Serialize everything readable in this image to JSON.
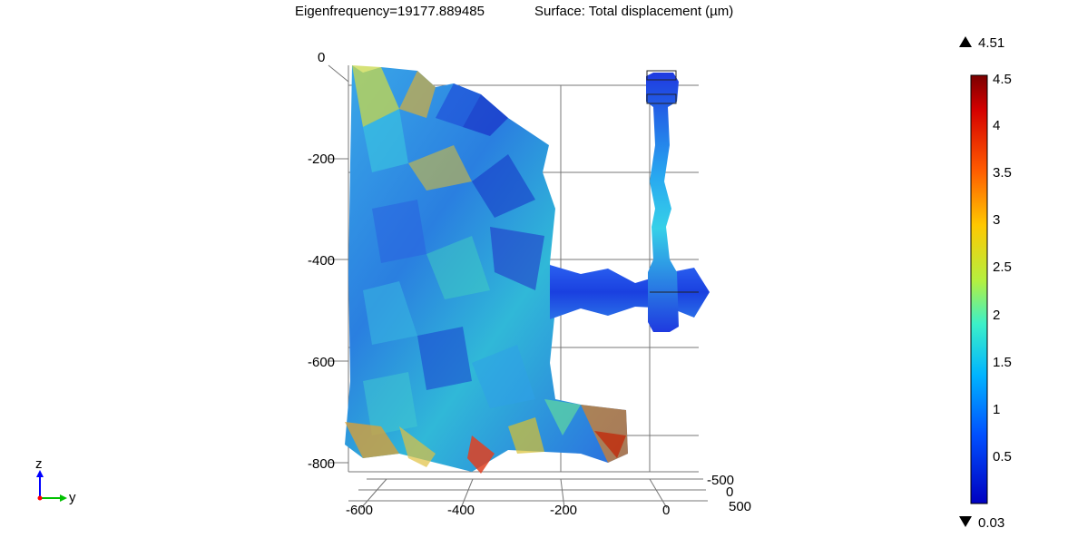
{
  "title": {
    "eigenfrequency": "Eigenfrequency=19177.889485",
    "surface": "Surface: Total displacement (µm)"
  },
  "axes": {
    "z_ticks": [
      "0",
      "-200",
      "-400",
      "-600",
      "-800"
    ],
    "y_ticks": [
      "-600",
      "-400",
      "-200",
      "0"
    ],
    "x_ticks": [
      "-500",
      "0",
      "500"
    ]
  },
  "triad": {
    "z": "z",
    "y": "y"
  },
  "colorbar": {
    "max_marker": "4.51",
    "min_marker": "0.03",
    "ticks": [
      "4.5",
      "4",
      "3.5",
      "3",
      "2.5",
      "2",
      "1.5",
      "1",
      "0.5"
    ],
    "colors": [
      "#7a0000",
      "#d40000",
      "#ff5a00",
      "#ffc800",
      "#b4f040",
      "#3cf0c8",
      "#00b4ff",
      "#0050ff",
      "#0000c0"
    ]
  }
}
